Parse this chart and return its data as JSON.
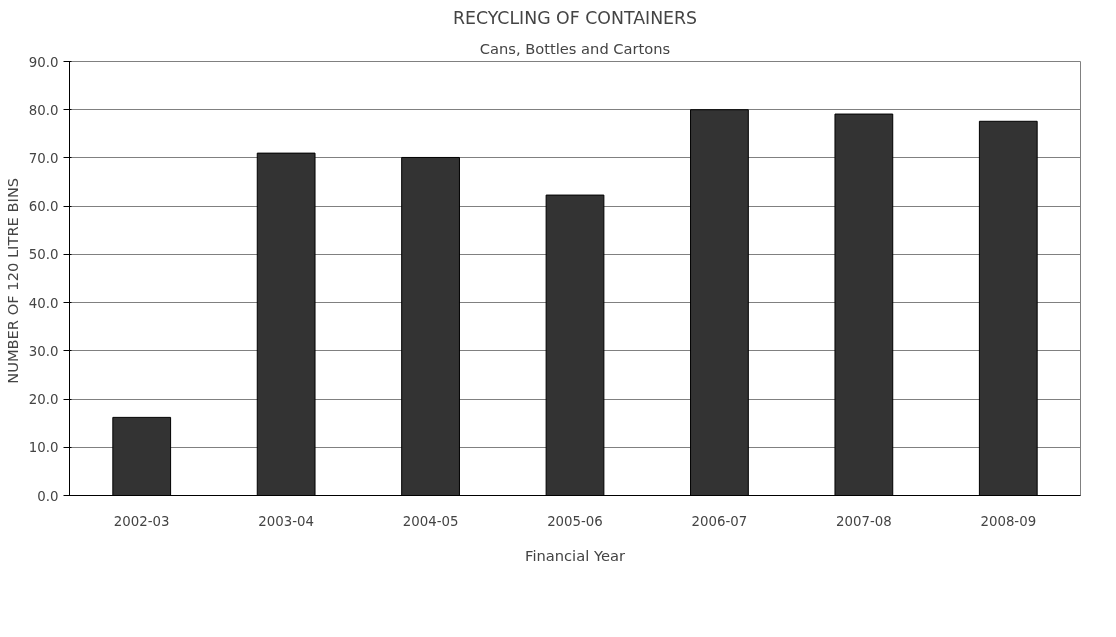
{
  "chart_data": {
    "type": "bar",
    "title": "RECYCLING OF CONTAINERS",
    "subtitle": "Cans, Bottles and Cartons",
    "xlabel": "Financial Year",
    "ylabel": "NUMBER OF  120 LITRE BINS",
    "categories": [
      "2002-03",
      "2003-04",
      "2004-05",
      "2005-06",
      "2006-07",
      "2007-08",
      "2008-09"
    ],
    "values": [
      16.2,
      71.0,
      70.1,
      62.3,
      80.0,
      79.1,
      77.6
    ],
    "color": "#333333",
    "ylim": [
      0,
      90
    ],
    "yticks": [
      {
        "value": 0,
        "label": "0.0"
      },
      {
        "value": 10,
        "label": "10.0"
      },
      {
        "value": 20,
        "label": "20.0"
      },
      {
        "value": 30,
        "label": "30.0"
      },
      {
        "value": 40,
        "label": "40.0"
      },
      {
        "value": 50,
        "label": "50.0"
      },
      {
        "value": 60,
        "label": "60.0"
      },
      {
        "value": 70,
        "label": "70.0"
      },
      {
        "value": 80,
        "label": "80.0"
      },
      {
        "value": 90,
        "label": "90.0"
      }
    ],
    "grid": "y"
  }
}
